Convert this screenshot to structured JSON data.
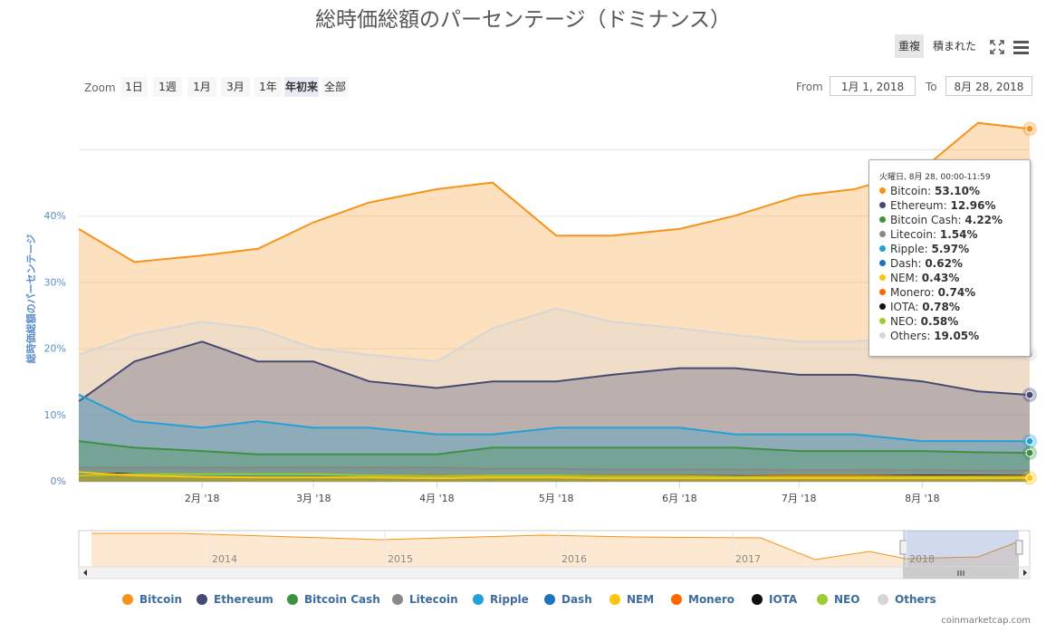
{
  "title": "総時価総額のパーセンテージ（ドミナンス）",
  "view_toggle": {
    "overlap": "重複",
    "stacked": "積まれた"
  },
  "zoom": {
    "label": "Zoom",
    "buttons": [
      "1日",
      "1週",
      "1月",
      "3月",
      "1年",
      "年初来",
      "全部"
    ],
    "selected": 5
  },
  "range": {
    "from_label": "From",
    "from_value": "1月 1, 2018",
    "to_label": "To",
    "to_value": "8月 28, 2018"
  },
  "tooltip": {
    "header": "火曜日, 8月 28, 00:00-11:59",
    "rows": [
      {
        "name": "Bitcoin",
        "value": "53.10%"
      },
      {
        "name": "Ethereum",
        "value": "12.96%"
      },
      {
        "name": "Bitcoin Cash",
        "value": "4.22%"
      },
      {
        "name": "Litecoin",
        "value": "1.54%"
      },
      {
        "name": "Ripple",
        "value": "5.97%"
      },
      {
        "name": "Dash",
        "value": "0.62%"
      },
      {
        "name": "NEM",
        "value": "0.43%"
      },
      {
        "name": "Monero",
        "value": "0.74%"
      },
      {
        "name": "IOTA",
        "value": "0.78%"
      },
      {
        "name": "NEO",
        "value": "0.58%"
      },
      {
        "name": "Others",
        "value": "19.05%"
      }
    ]
  },
  "navigator": {
    "years": [
      "2014",
      "2015",
      "2016",
      "2017",
      "2018"
    ]
  },
  "credit": "coinmarketcap.com",
  "colors": {
    "Bitcoin": "#f7931a",
    "Ethereum": "#454a75",
    "Bitcoin Cash": "#3d9140",
    "Litecoin": "#888888",
    "Ripple": "#23a0d6",
    "Dash": "#1c75bc",
    "NEM": "#ffc40c",
    "Monero": "#ff6600",
    "IOTA": "#111111",
    "NEO": "#9acd32",
    "Others": "#d6d6d6"
  },
  "chart_data": {
    "type": "area",
    "title": "総時価総額のパーセンテージ（ドミナンス）",
    "ylabel": "総時価総額のパーセンテージ",
    "ylim": [
      0,
      55
    ],
    "yticks": [
      "0%",
      "10%",
      "20%",
      "30%",
      "40%"
    ],
    "x": [
      "2018-01-01",
      "2018-01-15",
      "2018-02-01",
      "2018-02-15",
      "2018-03-01",
      "2018-03-15",
      "2018-04-01",
      "2018-04-15",
      "2018-05-01",
      "2018-05-15",
      "2018-06-01",
      "2018-06-15",
      "2018-07-01",
      "2018-07-15",
      "2018-08-01",
      "2018-08-15",
      "2018-08-28"
    ],
    "xticks": [
      "2月 '18",
      "3月 '18",
      "4月 '18",
      "5月 '18",
      "6月 '18",
      "7月 '18",
      "8月 '18"
    ],
    "series": [
      {
        "name": "Bitcoin",
        "values": [
          38,
          33,
          34,
          35,
          39,
          42,
          44,
          45,
          37,
          37,
          38,
          40,
          43,
          44,
          47,
          54,
          53.1
        ]
      },
      {
        "name": "Others",
        "values": [
          19,
          22,
          24,
          23,
          20,
          19,
          18,
          23,
          26,
          24,
          23,
          22,
          21,
          21,
          22,
          19,
          19.05
        ]
      },
      {
        "name": "Ethereum",
        "values": [
          12,
          18,
          21,
          18,
          18,
          15,
          14,
          15,
          15,
          16,
          17,
          17,
          16,
          16,
          15,
          13.5,
          12.96
        ]
      },
      {
        "name": "Ripple",
        "values": [
          13,
          9,
          8,
          9,
          8,
          8,
          7,
          7,
          8,
          8,
          8,
          7,
          7,
          7,
          6,
          6,
          5.97
        ]
      },
      {
        "name": "Bitcoin Cash",
        "values": [
          6,
          5,
          4.5,
          4,
          4,
          4,
          4,
          5,
          5,
          5,
          5,
          5,
          4.5,
          4.5,
          4.5,
          4.3,
          4.22
        ]
      },
      {
        "name": "Litecoin",
        "values": [
          2,
          2,
          2,
          2,
          2,
          2,
          2,
          1.8,
          1.8,
          1.7,
          1.7,
          1.7,
          1.6,
          1.6,
          1.6,
          1.5,
          1.54
        ]
      },
      {
        "name": "IOTA",
        "values": [
          1.2,
          1,
          0.9,
          0.8,
          0.8,
          0.7,
          0.7,
          0.8,
          0.8,
          0.8,
          0.8,
          0.8,
          0.8,
          0.8,
          0.8,
          0.8,
          0.78
        ]
      },
      {
        "name": "Monero",
        "values": [
          0.9,
          0.8,
          0.8,
          0.8,
          0.8,
          0.8,
          0.8,
          0.8,
          0.8,
          0.8,
          0.8,
          0.8,
          0.8,
          0.8,
          0.7,
          0.7,
          0.74
        ]
      },
      {
        "name": "Dash",
        "values": [
          1,
          0.9,
          0.8,
          0.8,
          0.7,
          0.7,
          0.7,
          0.7,
          0.7,
          0.7,
          0.7,
          0.7,
          0.6,
          0.6,
          0.6,
          0.6,
          0.62
        ]
      },
      {
        "name": "NEO",
        "values": [
          0.8,
          1,
          1,
          1,
          1,
          0.8,
          0.7,
          0.8,
          0.8,
          0.7,
          0.7,
          0.6,
          0.6,
          0.6,
          0.6,
          0.6,
          0.58
        ]
      },
      {
        "name": "NEM",
        "values": [
          1.3,
          0.8,
          0.6,
          0.5,
          0.5,
          0.5,
          0.4,
          0.5,
          0.5,
          0.4,
          0.4,
          0.4,
          0.4,
          0.4,
          0.4,
          0.4,
          0.43
        ]
      }
    ],
    "legend": [
      "Bitcoin",
      "Ethereum",
      "Bitcoin Cash",
      "Litecoin",
      "Ripple",
      "Dash",
      "NEM",
      "Monero",
      "IOTA",
      "NEO",
      "Others"
    ],
    "legend_position": "bottom",
    "grid": true
  }
}
